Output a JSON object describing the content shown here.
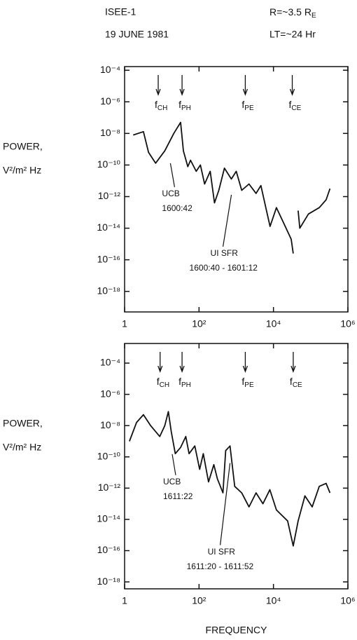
{
  "header": {
    "title": "ISEE-1",
    "date": "19 JUNE 1981",
    "r": {
      "text": "R=~3.5 R",
      "sub": "E"
    },
    "lt": "LT=~24 Hr"
  },
  "chart_data": [
    {
      "type": "line",
      "ylabel": [
        "POWER,",
        "V²/m² Hz"
      ],
      "log_x": true,
      "log_y": true,
      "xlim": [
        1,
        1000000
      ],
      "ylim": [
        5e-20,
        0.00017
      ],
      "xticks": [
        1,
        {
          "value": 100,
          "label": "10²"
        },
        {
          "value": 10000,
          "label": "10⁴"
        },
        {
          "value": 1000000,
          "label": "10⁶"
        }
      ],
      "yticks": [
        {
          "value": 0.0001,
          "label": "10⁻⁴"
        },
        {
          "value": 1e-06,
          "label": "10⁻⁶"
        },
        {
          "value": 1e-08,
          "label": "10⁻⁸"
        },
        {
          "value": 1e-10,
          "label": "10⁻¹⁰"
        },
        {
          "value": 1e-12,
          "label": "10⁻¹²"
        },
        {
          "value": 1e-14,
          "label": "10⁻¹⁴"
        },
        {
          "value": 1e-16,
          "label": "10⁻¹⁶"
        },
        {
          "value": 1e-18,
          "label": "10⁻¹⁸"
        }
      ],
      "x": [
        1.7,
        3.2,
        4.4,
        6.8,
        12,
        21,
        32,
        38,
        50,
        59,
        84,
        109,
        141,
        200,
        260,
        340,
        480,
        740,
        1000,
        1400,
        2200,
        3400,
        4600,
        6500,
        8100,
        12000,
        19000,
        30000,
        34000,
        40000,
        46000,
        51000,
        87000,
        170000,
        260000,
        330000
      ],
      "series": [
        {
          "color": "#111111",
          "values": [
            7.9e-09,
            1.3e-08,
            6.3e-10,
            1.3e-10,
            7.9e-10,
            1e-08,
            5e-08,
            7.9e-10,
            7.9e-11,
            2e-10,
            4e-11,
            1e-10,
            6.3e-12,
            4e-11,
            4e-13,
            2.5e-12,
            6.3e-11,
            1.3e-11,
            4e-11,
            2.5e-12,
            6.3e-12,
            1.6e-12,
            5e-12,
            1.3e-13,
            1.3e-14,
            2e-13,
            2e-14,
            2e-15,
            2.5e-16,
            null,
            1.3e-13,
            1e-14,
            7.9e-14,
            2e-13,
            6.3e-13,
            3.2e-12
          ]
        }
      ],
      "markers": [
        {
          "text": "f",
          "sub": "CH",
          "x": 8
        },
        {
          "text": "f",
          "sub": "PH",
          "x": 35
        },
        {
          "text": "f",
          "sub": "PE",
          "x": 1750
        },
        {
          "text": "f",
          "sub": "CE",
          "x": 32000
        }
      ],
      "annotations": [
        {
          "text": [
            "UCB",
            "1600:42"
          ],
          "x": 17,
          "y": 1.3e-10
        },
        {
          "text": [
            "UI SFR",
            "1600:40 - 1601:12"
          ],
          "x": 740,
          "y": 1.3e-12
        }
      ]
    },
    {
      "type": "line",
      "ylabel": [
        "POWER,",
        "V²/m² Hz"
      ],
      "xlabel": "FREQUENCY",
      "log_x": true,
      "log_y": true,
      "xlim": [
        1,
        1000000
      ],
      "ylim": [
        3.6e-19,
        0.0018
      ],
      "xticks": [
        1,
        {
          "value": 100,
          "label": "10²"
        },
        {
          "value": 10000,
          "label": "10⁴"
        },
        {
          "value": 1000000,
          "label": "10⁶"
        }
      ],
      "yticks": [
        {
          "value": 0.0001,
          "label": "10⁻⁴"
        },
        {
          "value": 1e-06,
          "label": "10⁻⁶"
        },
        {
          "value": 1e-08,
          "label": "10⁻⁸"
        },
        {
          "value": 1e-10,
          "label": "10⁻¹⁰"
        },
        {
          "value": 1e-12,
          "label": "10⁻¹²"
        },
        {
          "value": 1e-14,
          "label": "10⁻¹⁴"
        },
        {
          "value": 1e-16,
          "label": "10⁻¹⁶"
        },
        {
          "value": 1e-18,
          "label": "10⁻¹⁸"
        }
      ],
      "x": [
        1.35,
        2.1,
        3.2,
        5,
        8.8,
        12,
        15,
        18,
        23,
        32,
        44,
        54,
        77,
        104,
        130,
        180,
        250,
        310,
        440,
        520,
        680,
        910,
        1400,
        2200,
        3400,
        5200,
        8000,
        12000,
        24000,
        34000,
        46000,
        70000,
        110000,
        170000,
        260000,
        330000
      ],
      "series": [
        {
          "color": "#111111",
          "values": [
            1e-09,
            1.6e-08,
            5e-08,
            1e-08,
            2e-09,
            1e-08,
            7.9e-08,
            4e-09,
            1.6e-10,
            4e-10,
            2e-09,
            1.6e-10,
            5e-10,
            1.6e-11,
            1.6e-10,
            2.5e-12,
            3.2e-11,
            4e-12,
            5e-13,
            2.5e-10,
            5e-10,
            1.3e-12,
            5e-13,
            6.3e-14,
            5e-13,
            1e-13,
            7.9e-13,
            4e-14,
            7.9e-15,
            2e-16,
            7.9e-15,
            3.2e-13,
            6.3e-14,
            1.3e-12,
            2e-12,
            5e-13
          ]
        }
      ],
      "markers": [
        {
          "text": "f",
          "sub": "CH",
          "x": 9
        },
        {
          "text": "f",
          "sub": "PH",
          "x": 35
        },
        {
          "text": "f",
          "sub": "PE",
          "x": 1750
        },
        {
          "text": "f",
          "sub": "CE",
          "x": 34000
        }
      ],
      "annotations": [
        {
          "text": [
            "UCB",
            "1611:22"
          ],
          "x": 19,
          "y": 1.5e-10
        },
        {
          "text": [
            "UI SFR",
            "1611:20 - 1611:52"
          ],
          "x": 680,
          "y": 4e-11
        }
      ]
    }
  ]
}
